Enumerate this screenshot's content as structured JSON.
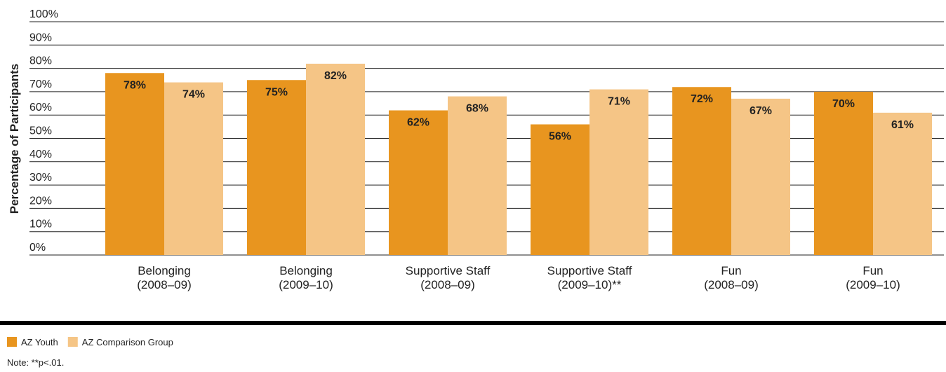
{
  "chart_data": {
    "type": "bar",
    "y_label": "Percentage of Participants",
    "categories": [
      [
        "Belonging",
        "(2008–09)"
      ],
      [
        "Belonging",
        "(2009–10)"
      ],
      [
        "Supportive Staff",
        "(2008–09)"
      ],
      [
        "Supportive Staff",
        "(2009–10)**"
      ],
      [
        "Fun",
        "(2008–09)"
      ],
      [
        "Fun",
        "(2009–10)"
      ]
    ],
    "series": [
      {
        "name": "AZ Youth",
        "color": "#e8951f",
        "values": [
          78,
          75,
          62,
          56,
          72,
          70
        ],
        "value_labels": [
          "78%",
          "75%",
          "62%",
          "56%",
          "72%",
          "70%"
        ]
      },
      {
        "name": "AZ Comparison Group",
        "color": "#f5c586",
        "values": [
          74,
          82,
          68,
          71,
          67,
          61
        ],
        "value_labels": [
          "74%",
          "82%",
          "68%",
          "71%",
          "67%",
          "61%"
        ]
      }
    ],
    "ylim": [
      0,
      100
    ],
    "yticks": [
      {
        "value": 0,
        "label": "0%"
      },
      {
        "value": 10,
        "label": "10%"
      },
      {
        "value": 20,
        "label": "20%"
      },
      {
        "value": 30,
        "label": "30%"
      },
      {
        "value": 40,
        "label": "40%"
      },
      {
        "value": 50,
        "label": "50%"
      },
      {
        "value": 60,
        "label": "60%"
      },
      {
        "value": 70,
        "label": "70%"
      },
      {
        "value": 80,
        "label": "80%"
      },
      {
        "value": 90,
        "label": "90%"
      },
      {
        "value": 100,
        "label": "100%"
      }
    ],
    "grid": true,
    "note": "Note: **p<.01."
  }
}
